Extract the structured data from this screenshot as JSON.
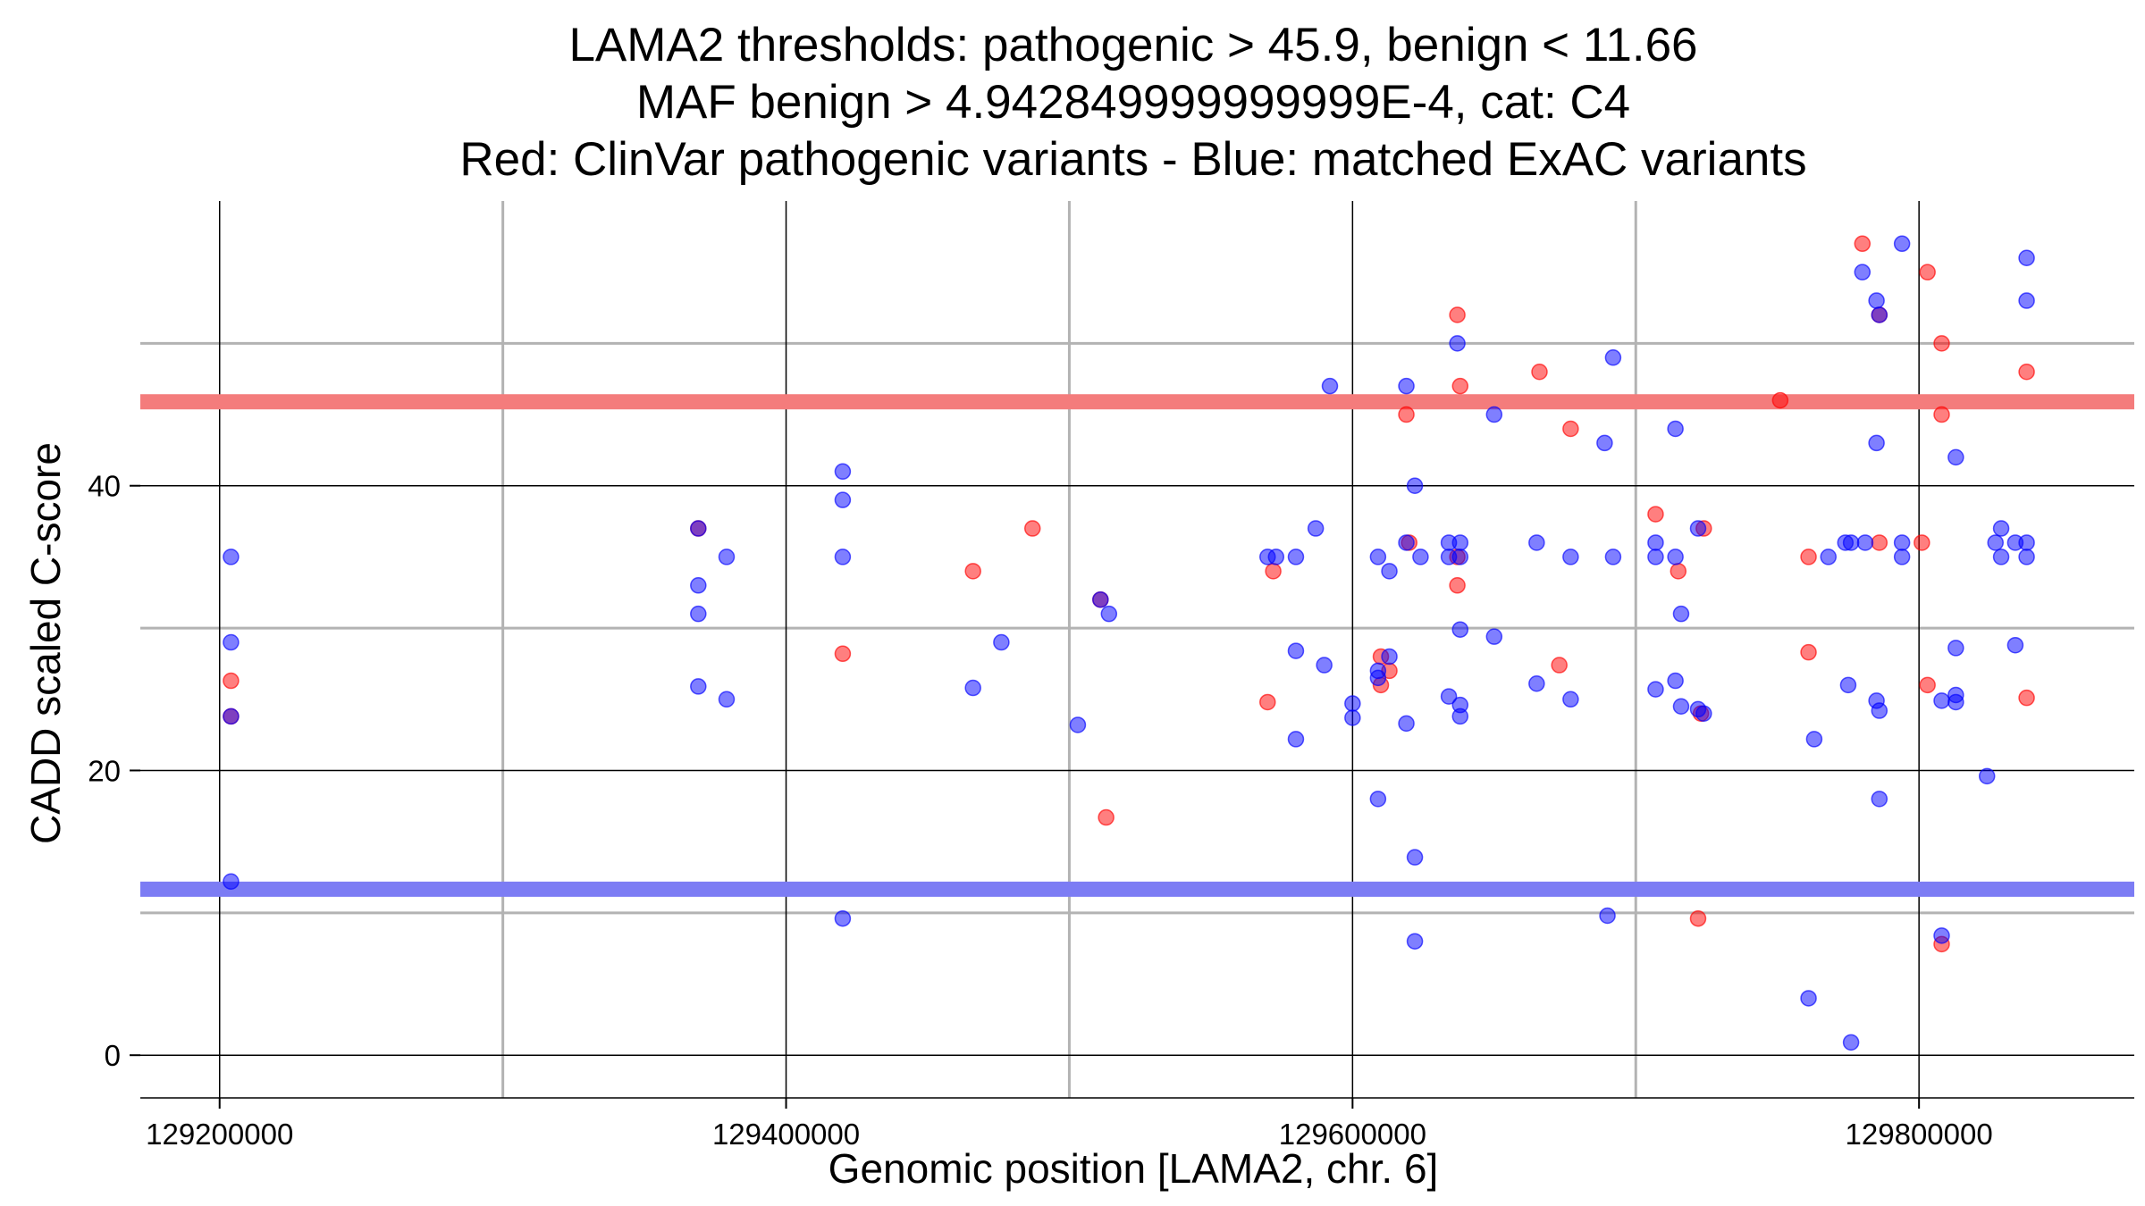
{
  "chart_data": {
    "type": "scatter",
    "title_lines": [
      "LAMA2 thresholds: pathogenic > 45.9, benign < 11.66",
      "MAF benign > 4.942849999999999E-4, cat: C4",
      "Red: ClinVar pathogenic variants - Blue: matched ExAC variants"
    ],
    "xlabel": "Genomic position [LAMA2, chr. 6]",
    "ylabel": "CADD scaled C-score",
    "xlim": [
      129172000,
      129876000
    ],
    "ylim": [
      -3,
      60
    ],
    "x_ticks": [
      129200000,
      129400000,
      129600000,
      129800000
    ],
    "x_tick_labels": [
      "129200000",
      "129400000",
      "129600000",
      "129800000"
    ],
    "x_minor_gridlines": [
      129300000,
      129500000,
      129700000
    ],
    "y_ticks": [
      0,
      20,
      40
    ],
    "y_tick_labels": [
      "0",
      "20",
      "40"
    ],
    "y_minor_gridlines": [
      10,
      30,
      50
    ],
    "grid": true,
    "thresholds": [
      {
        "axis": "y",
        "value": 45.9,
        "color": "#f47c7c"
      },
      {
        "axis": "y",
        "value": 11.66,
        "color": "#7c7cf4"
      }
    ],
    "series": [
      {
        "color": "#ff0000",
        "opacity": 0.5,
        "points": [
          [
            129204000,
            26.3
          ],
          [
            129204000,
            23.8
          ],
          [
            129369000,
            37
          ],
          [
            129420000,
            28.2
          ],
          [
            129466000,
            34
          ],
          [
            129487000,
            37
          ],
          [
            129511000,
            32
          ],
          [
            129513000,
            16.7
          ],
          [
            129570000,
            24.8
          ],
          [
            129572000,
            34
          ],
          [
            129610000,
            28
          ],
          [
            129610000,
            26
          ],
          [
            129613000,
            27
          ],
          [
            129619000,
            45
          ],
          [
            129620000,
            36
          ],
          [
            129637000,
            52
          ],
          [
            129638000,
            47
          ],
          [
            129637000,
            35
          ],
          [
            129637000,
            33
          ],
          [
            129666000,
            48
          ],
          [
            129673000,
            27.4
          ],
          [
            129677000,
            44
          ],
          [
            129707000,
            38
          ],
          [
            129715000,
            34
          ],
          [
            129722000,
            9.6
          ],
          [
            129723000,
            24
          ],
          [
            129724000,
            37
          ],
          [
            129751000,
            46
          ],
          [
            129761000,
            35
          ],
          [
            129761000,
            28.3
          ],
          [
            129780000,
            57
          ],
          [
            129786000,
            52
          ],
          [
            129786000,
            36
          ],
          [
            129801000,
            36
          ],
          [
            129803000,
            55
          ],
          [
            129803000,
            26
          ],
          [
            129808000,
            50
          ],
          [
            129808000,
            45
          ],
          [
            129808000,
            7.8
          ],
          [
            129838000,
            48
          ],
          [
            129838000,
            25.1
          ]
        ]
      },
      {
        "color": "#0000ff",
        "opacity": 0.5,
        "points": [
          [
            129204000,
            35
          ],
          [
            129204000,
            29
          ],
          [
            129204000,
            23.8
          ],
          [
            129204000,
            12.2
          ],
          [
            129369000,
            37
          ],
          [
            129369000,
            33
          ],
          [
            129369000,
            31
          ],
          [
            129369000,
            25.9
          ],
          [
            129379000,
            35
          ],
          [
            129379000,
            25
          ],
          [
            129420000,
            41
          ],
          [
            129420000,
            39
          ],
          [
            129420000,
            35
          ],
          [
            129420000,
            9.6
          ],
          [
            129466000,
            25.8
          ],
          [
            129476000,
            29
          ],
          [
            129503000,
            23.2
          ],
          [
            129511000,
            32
          ],
          [
            129514000,
            31
          ],
          [
            129570000,
            35
          ],
          [
            129573000,
            35
          ],
          [
            129580000,
            35
          ],
          [
            129580000,
            28.4
          ],
          [
            129580000,
            22.2
          ],
          [
            129587000,
            37
          ],
          [
            129590000,
            27.4
          ],
          [
            129592000,
            47
          ],
          [
            129600000,
            24.7
          ],
          [
            129600000,
            23.7
          ],
          [
            129609000,
            35
          ],
          [
            129609000,
            27
          ],
          [
            129609000,
            26.5
          ],
          [
            129609000,
            18
          ],
          [
            129613000,
            34
          ],
          [
            129613000,
            28
          ],
          [
            129619000,
            47
          ],
          [
            129619000,
            36
          ],
          [
            129619000,
            23.3
          ],
          [
            129622000,
            40
          ],
          [
            129622000,
            13.9
          ],
          [
            129622000,
            8
          ],
          [
            129624000,
            35
          ],
          [
            129634000,
            36
          ],
          [
            129634000,
            35
          ],
          [
            129634000,
            25.2
          ],
          [
            129637000,
            50
          ],
          [
            129638000,
            36
          ],
          [
            129638000,
            35
          ],
          [
            129638000,
            29.9
          ],
          [
            129638000,
            24.6
          ],
          [
            129638000,
            23.8
          ],
          [
            129650000,
            45
          ],
          [
            129650000,
            29.4
          ],
          [
            129665000,
            36
          ],
          [
            129665000,
            26.1
          ],
          [
            129677000,
            35
          ],
          [
            129677000,
            25
          ],
          [
            129689000,
            43
          ],
          [
            129690000,
            9.8
          ],
          [
            129692000,
            49
          ],
          [
            129692000,
            35
          ],
          [
            129707000,
            36
          ],
          [
            129707000,
            35
          ],
          [
            129707000,
            25.7
          ],
          [
            129714000,
            44
          ],
          [
            129714000,
            35
          ],
          [
            129714000,
            26.3
          ],
          [
            129716000,
            31
          ],
          [
            129716000,
            24.5
          ],
          [
            129722000,
            37
          ],
          [
            129722000,
            24.3
          ],
          [
            129724000,
            24
          ],
          [
            129763000,
            22.2
          ],
          [
            129761000,
            4
          ],
          [
            129768000,
            35
          ],
          [
            129774000,
            36
          ],
          [
            129776000,
            36
          ],
          [
            129775000,
            26
          ],
          [
            129776000,
            0.9
          ],
          [
            129780000,
            55
          ],
          [
            129781000,
            36
          ],
          [
            129785000,
            53
          ],
          [
            129786000,
            52
          ],
          [
            129785000,
            43
          ],
          [
            129785000,
            24.9
          ],
          [
            129786000,
            24.2
          ],
          [
            129786000,
            18
          ],
          [
            129794000,
            57
          ],
          [
            129794000,
            36
          ],
          [
            129794000,
            35
          ],
          [
            129808000,
            24.9
          ],
          [
            129808000,
            8.4
          ],
          [
            129813000,
            42
          ],
          [
            129813000,
            28.6
          ],
          [
            129813000,
            25.3
          ],
          [
            129813000,
            24.8
          ],
          [
            129824000,
            19.6
          ],
          [
            129827000,
            36
          ],
          [
            129829000,
            37
          ],
          [
            129829000,
            35
          ],
          [
            129834000,
            36
          ],
          [
            129834000,
            28.8
          ],
          [
            129838000,
            56
          ],
          [
            129838000,
            53
          ],
          [
            129838000,
            36
          ],
          [
            129838000,
            35
          ]
        ]
      }
    ]
  }
}
